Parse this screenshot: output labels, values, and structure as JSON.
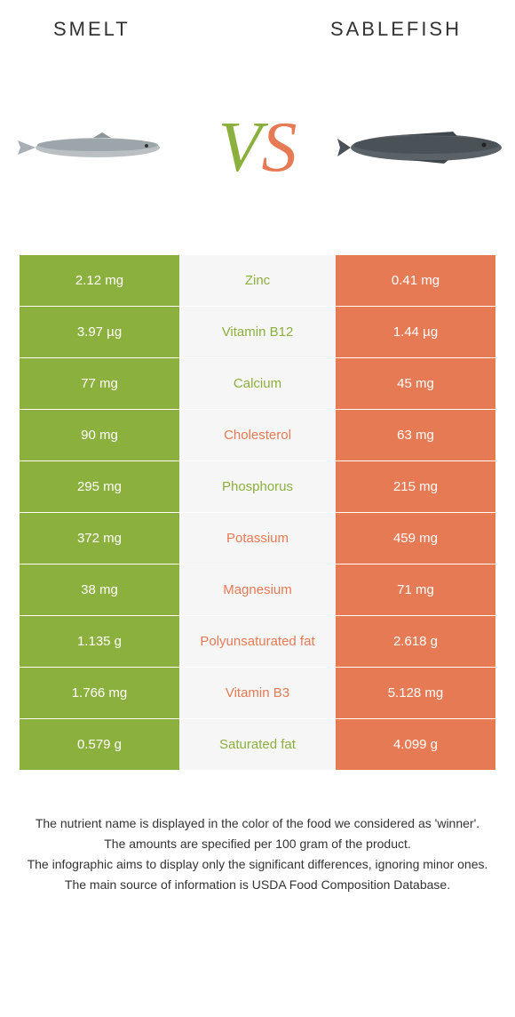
{
  "header": {
    "left_title": "Smelt",
    "right_title": "Sablefish"
  },
  "vs": {
    "v": "V",
    "s": "S"
  },
  "colors": {
    "green": "#8cb03e",
    "orange": "#e67a54",
    "dim_bg": "#ebebeb",
    "dim_text": "#666666",
    "mid_bg": "#f6f6f6"
  },
  "rows": [
    {
      "nutrient": "Zinc",
      "left": "2.12 mg",
      "right": "0.41 mg",
      "winner": "left"
    },
    {
      "nutrient": "Vitamin B12",
      "left": "3.97 µg",
      "right": "1.44 µg",
      "winner": "left"
    },
    {
      "nutrient": "Calcium",
      "left": "77 mg",
      "right": "45 mg",
      "winner": "left"
    },
    {
      "nutrient": "Cholesterol",
      "left": "90 mg",
      "right": "63 mg",
      "winner": "right"
    },
    {
      "nutrient": "Phosphorus",
      "left": "295 mg",
      "right": "215 mg",
      "winner": "left"
    },
    {
      "nutrient": "Potassium",
      "left": "372 mg",
      "right": "459 mg",
      "winner": "right"
    },
    {
      "nutrient": "Magnesium",
      "left": "38 mg",
      "right": "71 mg",
      "winner": "right"
    },
    {
      "nutrient": "Polyunsaturated fat",
      "left": "1.135 g",
      "right": "2.618 g",
      "winner": "right"
    },
    {
      "nutrient": "Vitamin B3",
      "left": "1.766 mg",
      "right": "5.128 mg",
      "winner": "right"
    },
    {
      "nutrient": "Saturated fat",
      "left": "0.579 g",
      "right": "4.099 g",
      "winner": "left"
    }
  ],
  "footer": {
    "line1": "The nutrient name is displayed in the color of the food we considered as 'winner'.",
    "line2": "The amounts are specified per 100 gram of the product.",
    "line3": "The infographic aims to display only the significant differences, ignoring minor ones.",
    "line4": "The main source of information is USDA Food Composition Database."
  }
}
